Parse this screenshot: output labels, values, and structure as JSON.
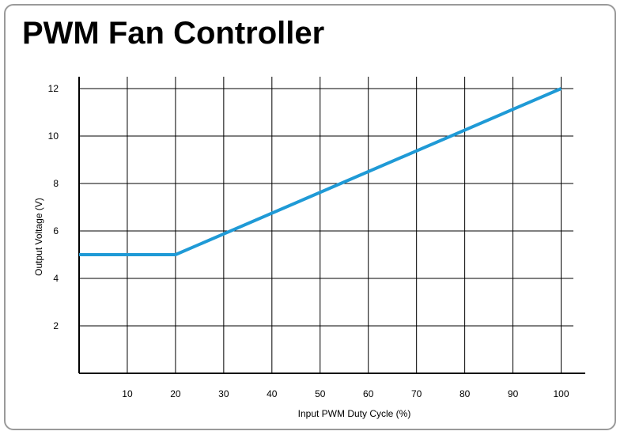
{
  "chart_data": {
    "type": "line",
    "title": "PWM Fan Controller",
    "xlabel": "Input PWM Duty Cycle (%)",
    "ylabel": "Output Voltage (V)",
    "xlim": [
      0,
      105
    ],
    "ylim": [
      0,
      12.5
    ],
    "x_ticks": [
      10,
      20,
      30,
      40,
      50,
      60,
      70,
      80,
      90,
      100
    ],
    "y_ticks": [
      2,
      4,
      6,
      8,
      10,
      12
    ],
    "grid": true,
    "legend": "none",
    "series": [
      {
        "color": "#1f9ad6",
        "x": [
          0,
          20,
          100
        ],
        "y": [
          5,
          5,
          12
        ]
      }
    ]
  }
}
